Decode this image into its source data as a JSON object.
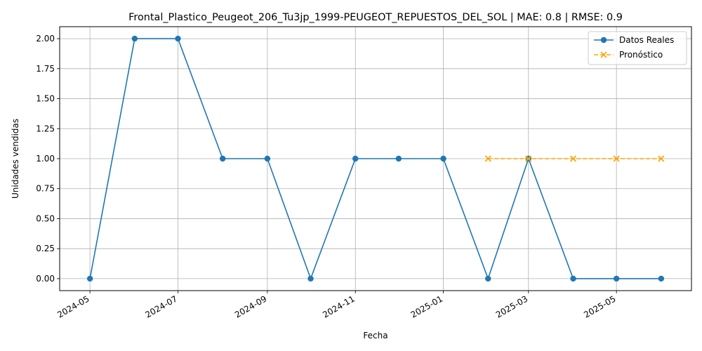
{
  "chart_data": {
    "type": "line",
    "title": "Frontal_Plastico_Peugeot_206_Tu3jp_1999-PEUGEOT_REPUESTOS_DEL_SOL | MAE: 0.8 | RMSE: 0.9",
    "xlabel": "Fecha",
    "ylabel": "Unidades vendidas",
    "x_axis_type": "date",
    "xlim": [
      "2024-04-10",
      "2025-06-22"
    ],
    "ylim": [
      -0.1,
      2.1
    ],
    "x_ticks": [
      "2024-05",
      "2024-07",
      "2024-09",
      "2024-11",
      "2025-01",
      "2025-03",
      "2025-05"
    ],
    "y_ticks": [
      "0.00",
      "0.25",
      "0.50",
      "0.75",
      "1.00",
      "1.25",
      "1.50",
      "1.75",
      "2.00"
    ],
    "grid": true,
    "legend_position": "top-right",
    "series": [
      {
        "name": "Datos Reales",
        "color": "#1f77b4",
        "line_style": "solid",
        "marker": "circle",
        "points": [
          {
            "x": "2024-05-01",
            "y": 0
          },
          {
            "x": "2024-06-01",
            "y": 2
          },
          {
            "x": "2024-07-01",
            "y": 2
          },
          {
            "x": "2024-08-01",
            "y": 1
          },
          {
            "x": "2024-09-01",
            "y": 1
          },
          {
            "x": "2024-10-01",
            "y": 0
          },
          {
            "x": "2024-11-01",
            "y": 1
          },
          {
            "x": "2024-12-01",
            "y": 1
          },
          {
            "x": "2025-01-01",
            "y": 1
          },
          {
            "x": "2025-02-01",
            "y": 0
          },
          {
            "x": "2025-03-01",
            "y": 1
          },
          {
            "x": "2025-04-01",
            "y": 0
          },
          {
            "x": "2025-05-01",
            "y": 0
          },
          {
            "x": "2025-06-01",
            "y": 0
          }
        ]
      },
      {
        "name": "Pronóstico",
        "color": "#ffa500",
        "line_style": "dashed",
        "marker": "x",
        "points": [
          {
            "x": "2025-02-01",
            "y": 1
          },
          {
            "x": "2025-03-01",
            "y": 1
          },
          {
            "x": "2025-04-01",
            "y": 1
          },
          {
            "x": "2025-05-01",
            "y": 1
          },
          {
            "x": "2025-06-01",
            "y": 1
          }
        ]
      }
    ]
  }
}
